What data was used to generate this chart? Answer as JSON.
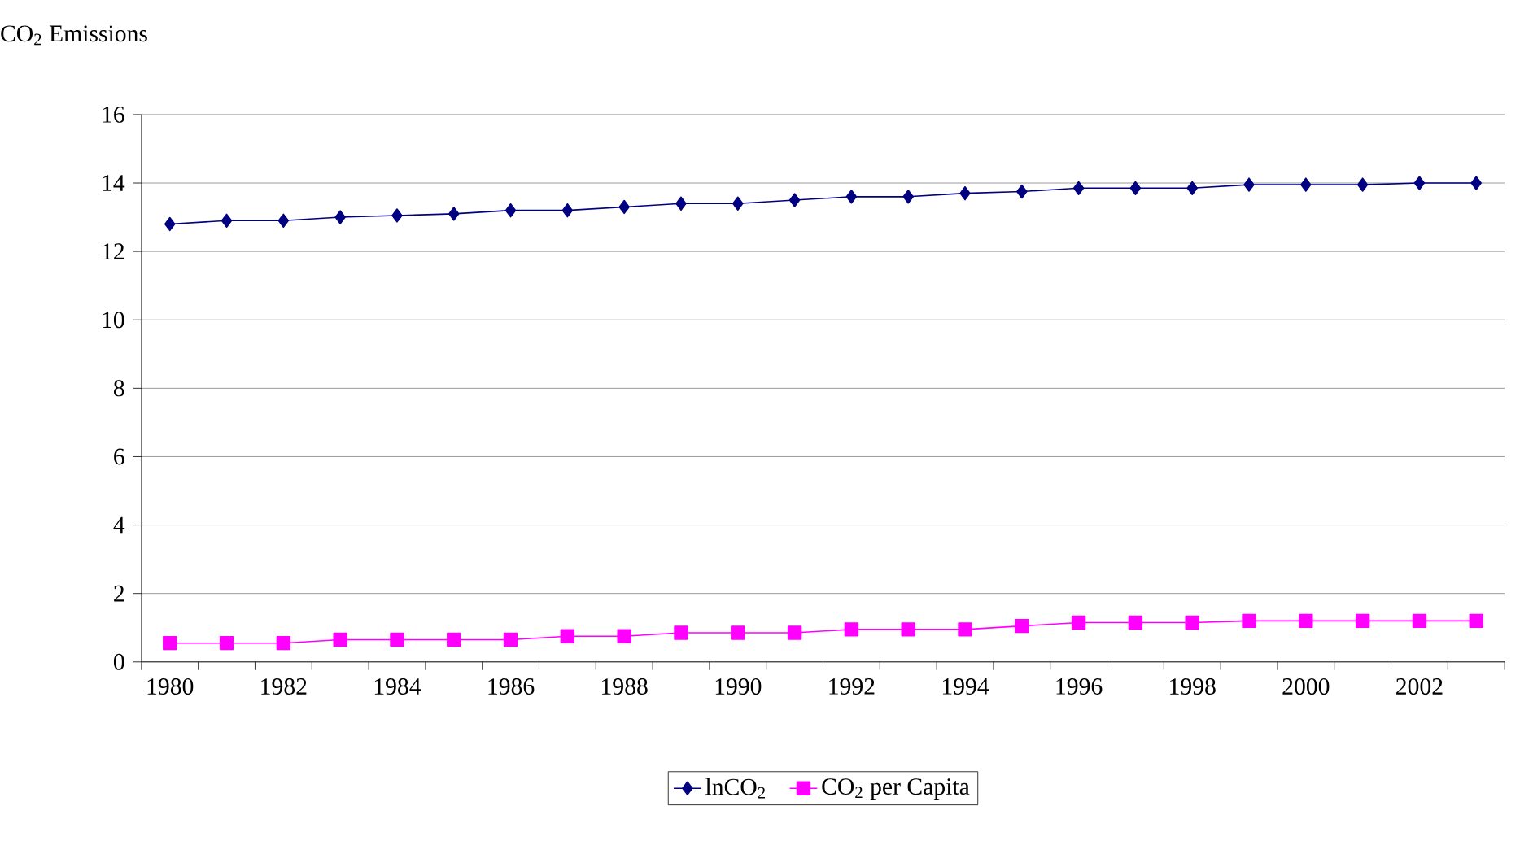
{
  "chart_data": {
    "type": "line",
    "ylabel": "CO$_{2}$ Emissions",
    "categories": [
      "1980",
      null,
      "1982",
      null,
      "1984",
      null,
      "1986",
      null,
      "1988",
      null,
      "1990",
      null,
      "1992",
      null,
      "1994",
      null,
      "1996",
      null,
      "1998",
      null,
      "2000",
      null,
      "2002",
      null
    ],
    "series": [
      {
        "name": "lnCO$_{2}$",
        "color": "#000080",
        "marker": "diamond",
        "values": [
          12.8,
          12.9,
          12.9,
          13.0,
          13.05,
          13.1,
          13.2,
          13.2,
          13.3,
          13.4,
          13.4,
          13.5,
          13.6,
          13.6,
          13.7,
          13.75,
          13.85,
          13.85,
          13.85,
          13.95,
          13.95,
          13.95,
          14.0,
          14.0
        ]
      },
      {
        "name": "CO$_{2}$ per Capita",
        "color": "#ff00ff",
        "marker": "square",
        "values": [
          0.55,
          0.55,
          0.55,
          0.65,
          0.65,
          0.65,
          0.65,
          0.75,
          0.75,
          0.85,
          0.85,
          0.85,
          0.95,
          0.95,
          0.95,
          1.05,
          1.15,
          1.15,
          1.15,
          1.2,
          1.2,
          1.2,
          1.2,
          1.2
        ]
      }
    ],
    "ylim": [
      0,
      16
    ],
    "yticks": [
      0,
      2,
      4,
      6,
      8,
      10,
      12,
      14,
      16
    ],
    "grid": "y",
    "legend": "bottom",
    "line_style": "solid"
  }
}
